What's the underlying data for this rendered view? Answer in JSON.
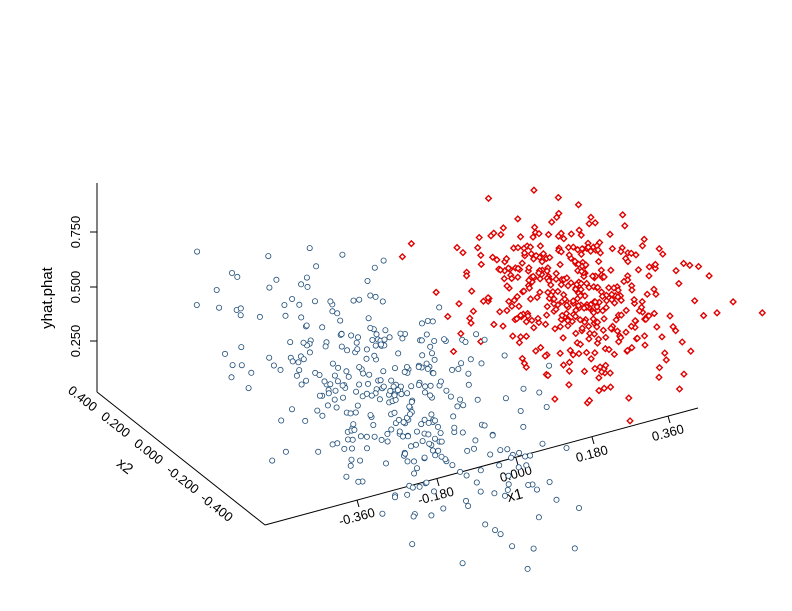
{
  "chart_data": {
    "type": "scatter",
    "projection": "3d",
    "title": "",
    "xlabel": "x1",
    "ylabel": "x2",
    "zlabel": "yhat.phat",
    "x_ticks": [
      "-0.360",
      "-0.180",
      "0.000",
      "0.180",
      "0.360"
    ],
    "y_ticks": [
      "0.400",
      "0.200",
      "0.000",
      "-0.200",
      "-0.400"
    ],
    "z_ticks": [
      "0.250",
      "0.500",
      "0.750"
    ],
    "xlim": [
      -0.5,
      0.5
    ],
    "ylim": [
      -0.5,
      0.5
    ],
    "zlim": [
      0.0,
      1.0
    ],
    "grid": false,
    "series": [
      {
        "color": "#1f4e79",
        "marker": "open-circle",
        "count": 380,
        "x_range": [
          -0.43,
          0.05
        ],
        "y_range": [
          -0.45,
          0.45
        ],
        "z_range": [
          0.0,
          0.6
        ],
        "centroid": [
          -0.18,
          0.05,
          0.35
        ]
      },
      {
        "color": "#e00000",
        "marker": "open-diamond",
        "count": 430,
        "x_range": [
          -0.02,
          0.48
        ],
        "y_range": [
          -0.35,
          0.35
        ],
        "z_range": [
          0.45,
          1.0
        ],
        "centroid": [
          0.2,
          -0.02,
          0.7
        ]
      }
    ]
  }
}
